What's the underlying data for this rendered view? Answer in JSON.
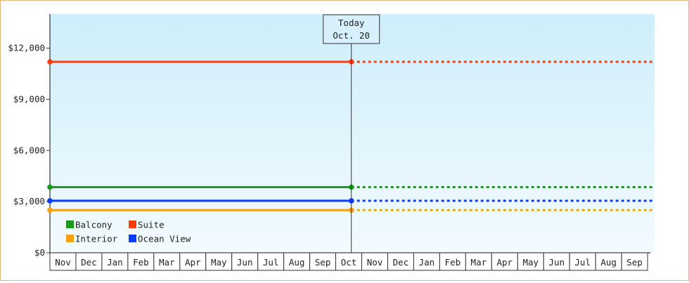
{
  "chart_data": {
    "type": "line",
    "xlabel": "",
    "ylabel": "",
    "ylim": [
      0,
      14000
    ],
    "y_ticks": [
      0,
      3000,
      6000,
      9000,
      12000
    ],
    "y_tick_labels": [
      "$0",
      "$3,000",
      "$6,000",
      "$9,000",
      "$12,000"
    ],
    "x_tick_labels": [
      "Nov",
      "Dec",
      "Jan",
      "Feb",
      "Mar",
      "Apr",
      "May",
      "Jun",
      "Jul",
      "Aug",
      "Sep",
      "Oct",
      "Nov",
      "Dec",
      "Jan",
      "Feb",
      "Mar",
      "Apr",
      "May",
      "Jun",
      "Jul",
      "Aug",
      "Sep"
    ],
    "today_marker": {
      "line1": "Today",
      "line2": "Oct. 20",
      "month_index": 11.6
    },
    "x_range_months": [
      0,
      23.2
    ],
    "series": [
      {
        "name": "Suite",
        "color": "#ff3b0f",
        "value": 11200,
        "start": 0,
        "end": 11.6,
        "projection_end": 23.2
      },
      {
        "name": "Balcony",
        "color": "#1a9a1a",
        "value": 3850,
        "start": 0,
        "end": 11.6,
        "projection_end": 23.2
      },
      {
        "name": "Ocean View",
        "color": "#0a3cff",
        "value": 3050,
        "start": 0,
        "end": 11.6,
        "projection_end": 23.2
      },
      {
        "name": "Interior",
        "color": "#f5a30a",
        "value": 2500,
        "start": 0,
        "end": 11.6,
        "projection_end": 23.2
      }
    ],
    "legend": {
      "placement": "bottom-left",
      "items": [
        {
          "label": "Balcony",
          "color": "#1a9a1a"
        },
        {
          "label": "Suite",
          "color": "#ff3b0f"
        },
        {
          "label": "Interior",
          "color": "#f5a30a"
        },
        {
          "label": "Ocean View",
          "color": "#0a3cff"
        }
      ]
    },
    "grid": false,
    "colors": {
      "bg_top": "#cdeefb",
      "bg_bottom": "#f3fbfe",
      "frame": "#e3b57a"
    }
  }
}
